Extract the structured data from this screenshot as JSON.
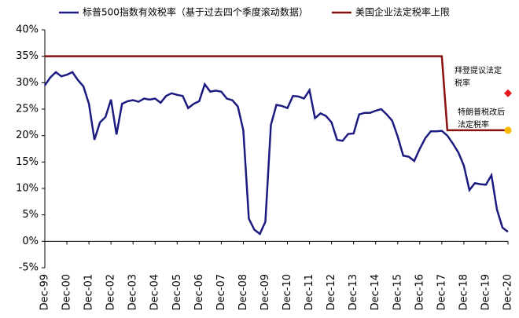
{
  "chart_data": {
    "type": "line",
    "categories": [
      "Dec-99",
      null,
      null,
      null,
      "Dec-00",
      null,
      null,
      null,
      "Dec-01",
      null,
      null,
      null,
      "Dec-02",
      null,
      null,
      null,
      "Dec-03",
      null,
      null,
      null,
      "Dec-04",
      null,
      null,
      null,
      "Dec-05",
      null,
      null,
      null,
      "Dec-06",
      null,
      null,
      null,
      "Dec-07",
      null,
      null,
      null,
      "Dec-08",
      null,
      null,
      null,
      "Dec-09",
      null,
      null,
      null,
      "Dec-10",
      null,
      null,
      null,
      "Dec-11",
      null,
      null,
      null,
      "Dec-12",
      null,
      null,
      null,
      "Dec-13",
      null,
      null,
      null,
      "Dec-14",
      null,
      null,
      null,
      "Dec-15",
      null,
      null,
      null,
      "Dec-16",
      null,
      null,
      null,
      "Dec-17",
      null,
      null,
      null,
      "Dec-18",
      null,
      null,
      null,
      "Dec-19",
      null,
      null,
      null,
      "Dec-20"
    ],
    "series": [
      {
        "name": "标普500指数有效税率（基于过去四个季度滚动数据）",
        "color": "#1c1c80",
        "values": [
          29.5,
          31,
          32,
          31.2,
          31.5,
          32,
          30.5,
          29.3,
          26,
          19.2,
          22.5,
          23.5,
          26.8,
          20.2,
          26,
          26.5,
          26.7,
          26.4,
          27,
          26.8,
          27,
          26.2,
          27.5,
          28,
          27.7,
          27.5,
          25.2,
          26,
          26.5,
          29.7,
          28.3,
          28.5,
          28.3,
          27,
          26.7,
          25.5,
          21,
          4.3,
          2.2,
          1.4,
          3.7,
          22,
          25.8,
          25.6,
          25.2,
          27.5,
          27.4,
          27,
          28.6,
          23.3,
          24.2,
          23.7,
          22.5,
          19.2,
          19,
          20.3,
          20.4,
          24,
          24.3,
          24.3,
          24.7,
          25,
          24,
          22.8,
          19.8,
          16.2,
          16,
          15.2,
          17.5,
          19.5,
          20.8,
          20.8,
          20.9,
          20,
          18.5,
          16.8,
          14.3,
          9.7,
          11,
          10.8,
          10.7,
          12.5,
          6,
          2.6,
          1.8
        ]
      },
      {
        "name": "美国企业法定税率上限",
        "color": "#8b1010",
        "values": [
          35,
          35,
          35,
          35,
          35,
          35,
          35,
          35,
          35,
          35,
          35,
          35,
          35,
          35,
          35,
          35,
          35,
          35,
          35,
          35,
          35,
          35,
          35,
          35,
          35,
          35,
          35,
          35,
          35,
          35,
          35,
          35,
          35,
          35,
          35,
          35,
          35,
          35,
          35,
          35,
          35,
          35,
          35,
          35,
          35,
          35,
          35,
          35,
          35,
          35,
          35,
          35,
          35,
          35,
          35,
          35,
          35,
          35,
          35,
          35,
          35,
          35,
          35,
          35,
          35,
          35,
          35,
          35,
          35,
          35,
          35,
          35,
          35,
          21,
          21,
          21,
          21,
          21,
          21,
          21,
          21,
          21,
          21,
          21,
          21
        ]
      }
    ],
    "annotations": [
      {
        "lines": [
          "拜登提议法定",
          "税率"
        ],
        "value": 28,
        "color": "#e8141e",
        "marker": "diamond"
      },
      {
        "lines": [
          "特朗普税改后",
          "法定税率"
        ],
        "value": 21,
        "color": "#f5b800",
        "marker": "circle"
      }
    ],
    "ylim": [
      -5,
      40
    ],
    "yticks": [
      {
        "value": -5,
        "label": "-5%"
      },
      {
        "value": 0,
        "label": "0%"
      },
      {
        "value": 5,
        "label": "5%"
      },
      {
        "value": 10,
        "label": "10%"
      },
      {
        "value": 15,
        "label": "15%"
      },
      {
        "value": 20,
        "label": "20%"
      },
      {
        "value": 25,
        "label": "25%"
      },
      {
        "value": 30,
        "label": "30%"
      },
      {
        "value": 35,
        "label": "35%"
      },
      {
        "value": 40,
        "label": "40%"
      }
    ],
    "grid": false
  }
}
